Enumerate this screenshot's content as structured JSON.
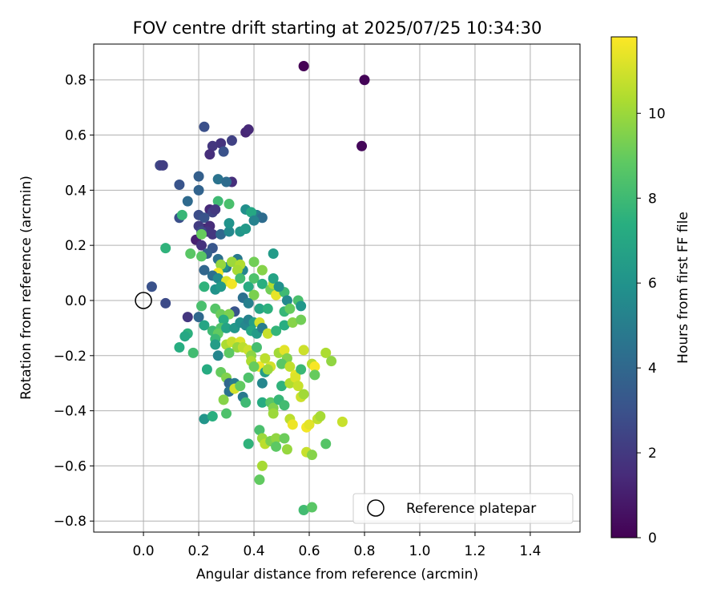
{
  "chart_data": {
    "type": "scatter",
    "title": "FOV centre drift starting at 2025/07/25 10:34:30",
    "xlabel": "Angular distance from reference (arcmin)",
    "ylabel": "Rotation from reference (arcmin)",
    "xlim": [
      -0.18,
      1.58
    ],
    "ylim": [
      -0.84,
      0.93
    ],
    "xticks": [
      "0.0",
      "0.2",
      "0.4",
      "0.6",
      "0.8",
      "1.0",
      "1.2",
      "1.4"
    ],
    "yticks": [
      "−0.8",
      "−0.6",
      "−0.4",
      "−0.2",
      "0.0",
      "0.2",
      "0.4",
      "0.6",
      "0.8"
    ],
    "grid": true,
    "legend": {
      "placement": "lower-right",
      "entries": [
        "Reference platepar"
      ]
    },
    "colorbar": {
      "label": "Hours from first FF file",
      "colormap": "viridis",
      "range": [
        0,
        11.8
      ],
      "ticks": [
        "0",
        "2",
        "4",
        "6",
        "8",
        "10"
      ]
    },
    "reference_point": {
      "x": 0.0,
      "y": 0.0,
      "label": "Reference platepar"
    },
    "points": [
      [
        0.58,
        0.85,
        0.0
      ],
      [
        0.8,
        0.8,
        0.1
      ],
      [
        0.79,
        0.56,
        0.2
      ],
      [
        0.37,
        0.61,
        1.3
      ],
      [
        0.38,
        0.62,
        1.4
      ],
      [
        0.22,
        0.63,
        2.9
      ],
      [
        0.32,
        0.58,
        2.3
      ],
      [
        0.28,
        0.57,
        1.8
      ],
      [
        0.25,
        0.56,
        1.9
      ],
      [
        0.29,
        0.54,
        3.0
      ],
      [
        0.24,
        0.53,
        1.6
      ],
      [
        0.06,
        0.49,
        2.5
      ],
      [
        0.07,
        0.49,
        2.2
      ],
      [
        0.32,
        0.43,
        1.6
      ],
      [
        0.13,
        0.42,
        3.1
      ],
      [
        0.2,
        0.45,
        3.6
      ],
      [
        0.27,
        0.44,
        4.5
      ],
      [
        0.3,
        0.43,
        4.2
      ],
      [
        0.2,
        0.4,
        3.8
      ],
      [
        0.16,
        0.36,
        4.1
      ],
      [
        0.13,
        0.3,
        2.9
      ],
      [
        0.14,
        0.31,
        7.8
      ],
      [
        0.27,
        0.36,
        8.0
      ],
      [
        0.31,
        0.35,
        8.3
      ],
      [
        0.24,
        0.33,
        1.4
      ],
      [
        0.25,
        0.32,
        2.3
      ],
      [
        0.26,
        0.33,
        2.0
      ],
      [
        0.2,
        0.31,
        2.8
      ],
      [
        0.22,
        0.3,
        3.1
      ],
      [
        0.22,
        0.26,
        1.2
      ],
      [
        0.24,
        0.27,
        1.5
      ],
      [
        0.23,
        0.25,
        1.8
      ],
      [
        0.2,
        0.27,
        2.1
      ],
      [
        0.21,
        0.25,
        2.6
      ],
      [
        0.19,
        0.22,
        1.1
      ],
      [
        0.21,
        0.2,
        1.7
      ],
      [
        0.25,
        0.24,
        1.9
      ],
      [
        0.28,
        0.24,
        4.0
      ],
      [
        0.31,
        0.25,
        5.5
      ],
      [
        0.31,
        0.28,
        6.0
      ],
      [
        0.35,
        0.25,
        6.1
      ],
      [
        0.37,
        0.26,
        6.3
      ],
      [
        0.37,
        0.33,
        5.8
      ],
      [
        0.41,
        0.31,
        4.9
      ],
      [
        0.43,
        0.3,
        4.2
      ],
      [
        0.39,
        0.32,
        7.0
      ],
      [
        0.4,
        0.29,
        5.2
      ],
      [
        0.21,
        0.24,
        9.0
      ],
      [
        0.17,
        0.17,
        8.7
      ],
      [
        0.08,
        0.19,
        7.6
      ],
      [
        0.25,
        0.19,
        3.2
      ],
      [
        0.23,
        0.17,
        3.6
      ],
      [
        0.21,
        0.16,
        8.7
      ],
      [
        0.27,
        0.15,
        4.4
      ],
      [
        0.3,
        0.12,
        4.6
      ],
      [
        0.34,
        0.15,
        4.8
      ],
      [
        0.36,
        0.11,
        5.4
      ],
      [
        0.29,
        0.12,
        5.9
      ],
      [
        0.28,
        0.13,
        9.9
      ],
      [
        0.32,
        0.14,
        10.0
      ],
      [
        0.35,
        0.13,
        10.4
      ],
      [
        0.34,
        0.11,
        10.2
      ],
      [
        0.27,
        0.1,
        11.6
      ],
      [
        0.4,
        0.14,
        9.2
      ],
      [
        0.43,
        0.11,
        9.6
      ],
      [
        0.47,
        0.17,
        6.4
      ],
      [
        0.22,
        0.11,
        3.9
      ],
      [
        0.25,
        0.09,
        4.3
      ],
      [
        0.27,
        0.08,
        5.6
      ],
      [
        0.3,
        0.07,
        11.2
      ],
      [
        0.32,
        0.06,
        11.6
      ],
      [
        0.35,
        0.08,
        8.1
      ],
      [
        0.38,
        0.05,
        7.2
      ],
      [
        0.4,
        0.08,
        8.4
      ],
      [
        0.43,
        0.06,
        7.4
      ],
      [
        0.46,
        0.04,
        9.2
      ],
      [
        0.47,
        0.06,
        10.4
      ],
      [
        0.47,
        0.08,
        6.8
      ],
      [
        0.22,
        0.05,
        7.6
      ],
      [
        0.26,
        0.04,
        6.0
      ],
      [
        0.28,
        0.05,
        6.3
      ],
      [
        0.4,
        0.02,
        9.4
      ],
      [
        0.48,
        0.02,
        11.4
      ],
      [
        0.51,
        0.03,
        8.0
      ],
      [
        0.56,
        0.0,
        8.3
      ],
      [
        0.52,
        0.0,
        5.5
      ],
      [
        0.49,
        0.05,
        5.9
      ],
      [
        0.03,
        0.05,
        3.0
      ],
      [
        0.08,
        -0.01,
        2.7
      ],
      [
        0.33,
        -0.04,
        3.1
      ],
      [
        0.36,
        0.01,
        4.4
      ],
      [
        0.38,
        -0.01,
        5.1
      ],
      [
        0.42,
        -0.03,
        6.9
      ],
      [
        0.45,
        -0.03,
        7.5
      ],
      [
        0.51,
        -0.04,
        7.8
      ],
      [
        0.53,
        -0.03,
        9.0
      ],
      [
        0.57,
        -0.02,
        6.2
      ],
      [
        0.21,
        -0.02,
        8.3
      ],
      [
        0.26,
        -0.03,
        8.6
      ],
      [
        0.28,
        -0.05,
        9.1
      ],
      [
        0.31,
        -0.05,
        9.4
      ],
      [
        0.29,
        -0.07,
        7.3
      ],
      [
        0.16,
        -0.06,
        1.9
      ],
      [
        0.2,
        -0.06,
        4.0
      ],
      [
        0.22,
        -0.09,
        6.9
      ],
      [
        0.25,
        -0.11,
        8.0
      ],
      [
        0.28,
        -0.1,
        8.5
      ],
      [
        0.27,
        -0.12,
        8.9
      ],
      [
        0.3,
        -0.1,
        6.8
      ],
      [
        0.33,
        -0.1,
        6.2
      ],
      [
        0.35,
        -0.08,
        5.9
      ],
      [
        0.37,
        -0.09,
        5.5
      ],
      [
        0.38,
        -0.07,
        5.2
      ],
      [
        0.4,
        -0.08,
        6.6
      ],
      [
        0.39,
        -0.11,
        7.0
      ],
      [
        0.41,
        -0.12,
        6.4
      ],
      [
        0.42,
        -0.08,
        11.0
      ],
      [
        0.43,
        -0.1,
        5.0
      ],
      [
        0.45,
        -0.12,
        10.8
      ],
      [
        0.48,
        -0.11,
        7.7
      ],
      [
        0.51,
        -0.09,
        7.3
      ],
      [
        0.54,
        -0.08,
        9.6
      ],
      [
        0.57,
        -0.07,
        9.2
      ],
      [
        0.16,
        -0.12,
        7.5
      ],
      [
        0.15,
        -0.13,
        7.0
      ],
      [
        0.26,
        -0.14,
        7.9
      ],
      [
        0.3,
        -0.16,
        10.3
      ],
      [
        0.32,
        -0.15,
        10.8
      ],
      [
        0.35,
        -0.15,
        11.2
      ],
      [
        0.34,
        -0.17,
        9.9
      ],
      [
        0.26,
        -0.16,
        6.5
      ],
      [
        0.27,
        -0.2,
        5.4
      ],
      [
        0.31,
        -0.19,
        8.8
      ],
      [
        0.36,
        -0.17,
        10.6
      ],
      [
        0.38,
        -0.18,
        10.9
      ],
      [
        0.41,
        -0.17,
        8.2
      ],
      [
        0.39,
        -0.2,
        9.7
      ],
      [
        0.39,
        -0.22,
        10.3
      ],
      [
        0.42,
        -0.24,
        11.6
      ],
      [
        0.44,
        -0.21,
        10.6
      ],
      [
        0.46,
        -0.24,
        11.0
      ],
      [
        0.49,
        -0.19,
        10.1
      ],
      [
        0.51,
        -0.18,
        11.3
      ],
      [
        0.52,
        -0.21,
        9.5
      ],
      [
        0.5,
        -0.23,
        8.7
      ],
      [
        0.53,
        -0.24,
        10.7
      ],
      [
        0.55,
        -0.27,
        11.4
      ],
      [
        0.57,
        -0.25,
        7.9
      ],
      [
        0.58,
        -0.18,
        10.9
      ],
      [
        0.61,
        -0.23,
        10.5
      ],
      [
        0.62,
        -0.24,
        11.7
      ],
      [
        0.62,
        -0.27,
        9.0
      ],
      [
        0.66,
        -0.19,
        10.3
      ],
      [
        0.68,
        -0.22,
        9.8
      ],
      [
        0.13,
        -0.17,
        7.3
      ],
      [
        0.18,
        -0.19,
        8.1
      ],
      [
        0.23,
        -0.25,
        7.2
      ],
      [
        0.28,
        -0.26,
        9.0
      ],
      [
        0.3,
        -0.28,
        9.5
      ],
      [
        0.31,
        -0.3,
        3.9
      ],
      [
        0.31,
        -0.33,
        4.5
      ],
      [
        0.33,
        -0.3,
        5.0
      ],
      [
        0.33,
        -0.32,
        11.0
      ],
      [
        0.35,
        -0.31,
        8.9
      ],
      [
        0.36,
        -0.35,
        4.8
      ],
      [
        0.38,
        -0.28,
        8.4
      ],
      [
        0.4,
        -0.24,
        9.0
      ],
      [
        0.44,
        -0.26,
        6.5
      ],
      [
        0.43,
        -0.3,
        5.4
      ],
      [
        0.45,
        -0.25,
        10.0
      ],
      [
        0.5,
        -0.31,
        7.6
      ],
      [
        0.53,
        -0.3,
        10.4
      ],
      [
        0.55,
        -0.28,
        11.2
      ],
      [
        0.56,
        -0.31,
        10.8
      ],
      [
        0.57,
        -0.35,
        10.9
      ],
      [
        0.58,
        -0.34,
        10.1
      ],
      [
        0.29,
        -0.36,
        9.6
      ],
      [
        0.3,
        -0.41,
        8.4
      ],
      [
        0.37,
        -0.37,
        8.0
      ],
      [
        0.43,
        -0.37,
        7.2
      ],
      [
        0.46,
        -0.37,
        8.7
      ],
      [
        0.47,
        -0.39,
        9.5
      ],
      [
        0.47,
        -0.41,
        10.0
      ],
      [
        0.49,
        -0.36,
        7.8
      ],
      [
        0.51,
        -0.38,
        8.1
      ],
      [
        0.22,
        -0.43,
        6.1
      ],
      [
        0.25,
        -0.42,
        7.4
      ],
      [
        0.53,
        -0.43,
        10.6
      ],
      [
        0.54,
        -0.45,
        11.5
      ],
      [
        0.59,
        -0.46,
        11.6
      ],
      [
        0.6,
        -0.45,
        11.3
      ],
      [
        0.63,
        -0.43,
        10.7
      ],
      [
        0.64,
        -0.42,
        10.2
      ],
      [
        0.72,
        -0.44,
        10.8
      ],
      [
        0.38,
        -0.52,
        7.6
      ],
      [
        0.42,
        -0.47,
        8.3
      ],
      [
        0.43,
        -0.5,
        10.0
      ],
      [
        0.44,
        -0.52,
        10.6
      ],
      [
        0.46,
        -0.51,
        9.4
      ],
      [
        0.48,
        -0.5,
        9.8
      ],
      [
        0.48,
        -0.53,
        8.8
      ],
      [
        0.51,
        -0.5,
        9.1
      ],
      [
        0.52,
        -0.54,
        9.9
      ],
      [
        0.59,
        -0.55,
        10.8
      ],
      [
        0.61,
        -0.56,
        9.6
      ],
      [
        0.66,
        -0.52,
        8.6
      ],
      [
        0.43,
        -0.6,
        10.2
      ],
      [
        0.42,
        -0.65,
        8.9
      ],
      [
        0.58,
        -0.76,
        8.1
      ],
      [
        0.61,
        -0.75,
        8.7
      ]
    ]
  }
}
